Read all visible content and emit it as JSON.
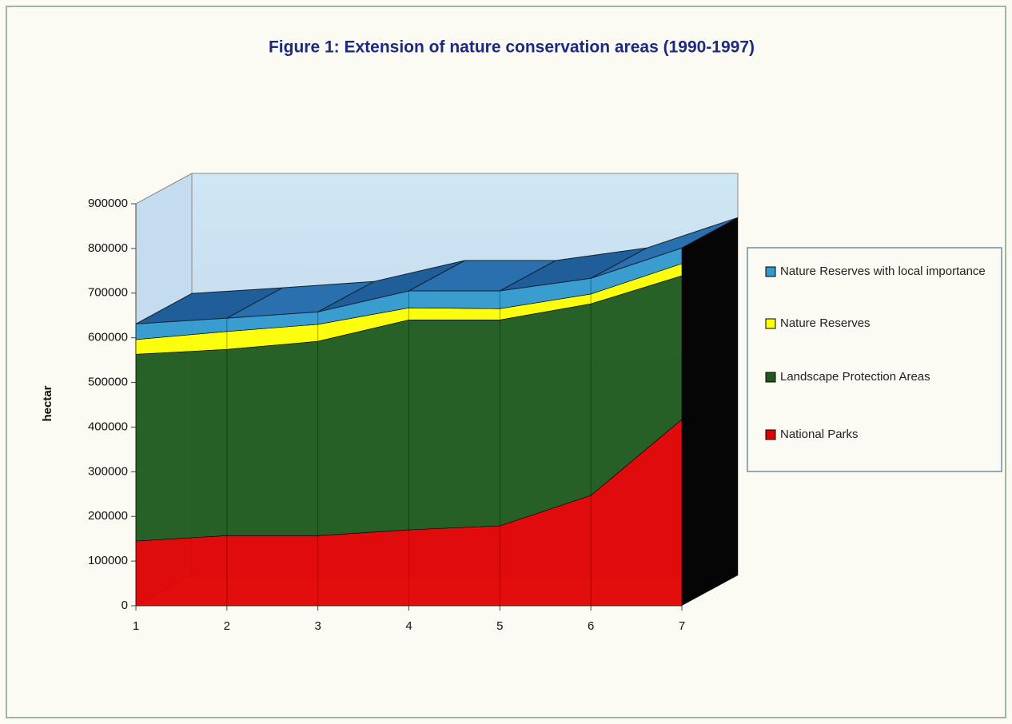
{
  "chart_data": {
    "type": "stacked-area-3d",
    "title": "Figure 1: Extension of nature conservation areas (1990-1997)",
    "y_label": "hectar",
    "categories": [
      "1",
      "2",
      "3",
      "4",
      "5",
      "6",
      "7"
    ],
    "series": [
      {
        "name": "National Parks",
        "color": "#e00000",
        "values": [
          145000,
          157000,
          157000,
          170000,
          179000,
          247000,
          417000
        ]
      },
      {
        "name": "Landscape Protection Areas",
        "color": "#1f5a1c",
        "values": [
          418000,
          417000,
          435000,
          470000,
          461000,
          429000,
          322000
        ]
      },
      {
        "name": "Nature Reserves",
        "color": "#ffff00",
        "values": [
          33000,
          40000,
          38000,
          27000,
          25000,
          22000,
          27000
        ]
      },
      {
        "name": "Nature Reserves with local importance",
        "color": "#3399cc",
        "values": [
          35000,
          30000,
          28000,
          38000,
          40000,
          35000,
          35000
        ]
      }
    ],
    "ylim": [
      0,
      900000
    ],
    "yticks": [
      0,
      100000,
      200000,
      300000,
      400000,
      500000,
      600000,
      700000,
      800000,
      900000
    ]
  }
}
